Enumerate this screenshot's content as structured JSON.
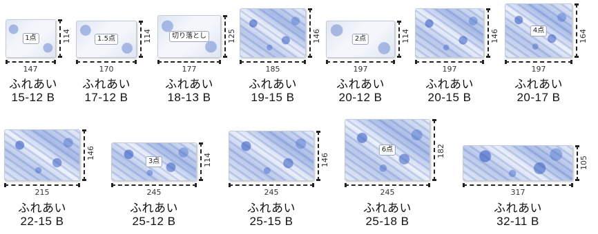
{
  "products": [
    {
      "brand": "ふれあい",
      "code": "15-12 B",
      "width": "147",
      "height": "114",
      "badge": "1点"
    },
    {
      "brand": "ふれあい",
      "code": "17-12 B",
      "width": "170",
      "height": "114",
      "badge": "1.5点"
    },
    {
      "brand": "ふれあい",
      "code": "18-13 B",
      "width": "177",
      "height": "125",
      "badge": "切り落とし"
    },
    {
      "brand": "ふれあい",
      "code": "19-15 B",
      "width": "185",
      "height": "146",
      "badge": ""
    },
    {
      "brand": "ふれあい",
      "code": "20-12 B",
      "width": "197",
      "height": "114",
      "badge": "2点"
    },
    {
      "brand": "ふれあい",
      "code": "20-15 B",
      "width": "197",
      "height": "146",
      "badge": ""
    },
    {
      "brand": "ふれあい",
      "code": "20-17 B",
      "width": "197",
      "height": "164",
      "badge": "4点"
    },
    {
      "brand": "ふれあい",
      "code": "22-15 B",
      "width": "215",
      "height": "146",
      "badge": ""
    },
    {
      "brand": "ふれあい",
      "code": "25-12 B",
      "width": "245",
      "height": "114",
      "badge": "3点"
    },
    {
      "brand": "ふれあい",
      "code": "25-15 B",
      "width": "245",
      "height": "146",
      "badge": ""
    },
    {
      "brand": "ふれあい",
      "code": "25-18 B",
      "width": "245",
      "height": "182",
      "badge": "6点"
    },
    {
      "brand": "ふれあい",
      "code": "32-11 B",
      "width": "317",
      "height": "105",
      "badge": ""
    }
  ]
}
